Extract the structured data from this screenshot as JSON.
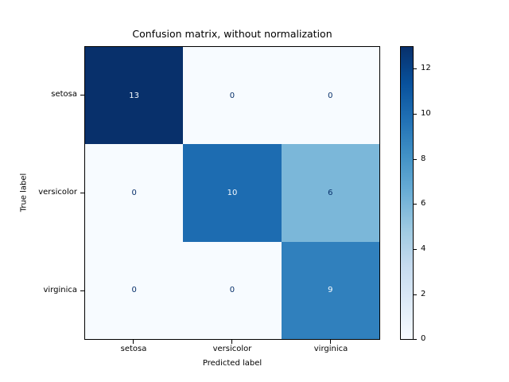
{
  "figure": {
    "title": "Confusion matrix, without normalization",
    "xlabel": "Predicted label",
    "ylabel": "True label"
  },
  "x_tick_labels": [
    "setosa",
    "versicolor",
    "virginica"
  ],
  "y_tick_labels": [
    "setosa",
    "versicolor",
    "virginica"
  ],
  "cells": [
    {
      "value": "13",
      "bg": "#08306b",
      "fg": "#f7fbff"
    },
    {
      "value": "0",
      "bg": "#f7fbff",
      "fg": "#08306b"
    },
    {
      "value": "0",
      "bg": "#f7fbff",
      "fg": "#08306b"
    },
    {
      "value": "0",
      "bg": "#f7fbff",
      "fg": "#08306b"
    },
    {
      "value": "10",
      "bg": "#1d6cb1",
      "fg": "#f7fbff"
    },
    {
      "value": "6",
      "bg": "#7bb7d9",
      "fg": "#08306b"
    },
    {
      "value": "0",
      "bg": "#f7fbff",
      "fg": "#08306b"
    },
    {
      "value": "0",
      "bg": "#f7fbff",
      "fg": "#08306b"
    },
    {
      "value": "9",
      "bg": "#3080bd",
      "fg": "#f7fbff"
    }
  ],
  "colorbar": {
    "tick_labels": {
      "t12": "12",
      "t10": "10",
      "t8": "8",
      "t6": "6",
      "t4": "4",
      "t2": "2",
      "t0": "0"
    }
  },
  "chart_data": {
    "type": "heatmap",
    "title": "Confusion matrix, without normalization",
    "xlabel": "Predicted label",
    "ylabel": "True label",
    "x_tick_labels": [
      "setosa",
      "versicolor",
      "virginica"
    ],
    "y_tick_labels": [
      "setosa",
      "versicolor",
      "virginica"
    ],
    "matrix": [
      [
        13,
        0,
        0
      ],
      [
        0,
        10,
        6
      ],
      [
        0,
        0,
        9
      ]
    ],
    "colormap": "Blues",
    "colormap_low_color": "#f7fbff",
    "colormap_high_color": "#08306b",
    "colorbar": {
      "position": "right",
      "ticks": [
        0,
        2,
        4,
        6,
        8,
        10,
        12
      ],
      "vmin": 0,
      "vmax": 13
    },
    "grid": false,
    "legend_position": "none"
  }
}
